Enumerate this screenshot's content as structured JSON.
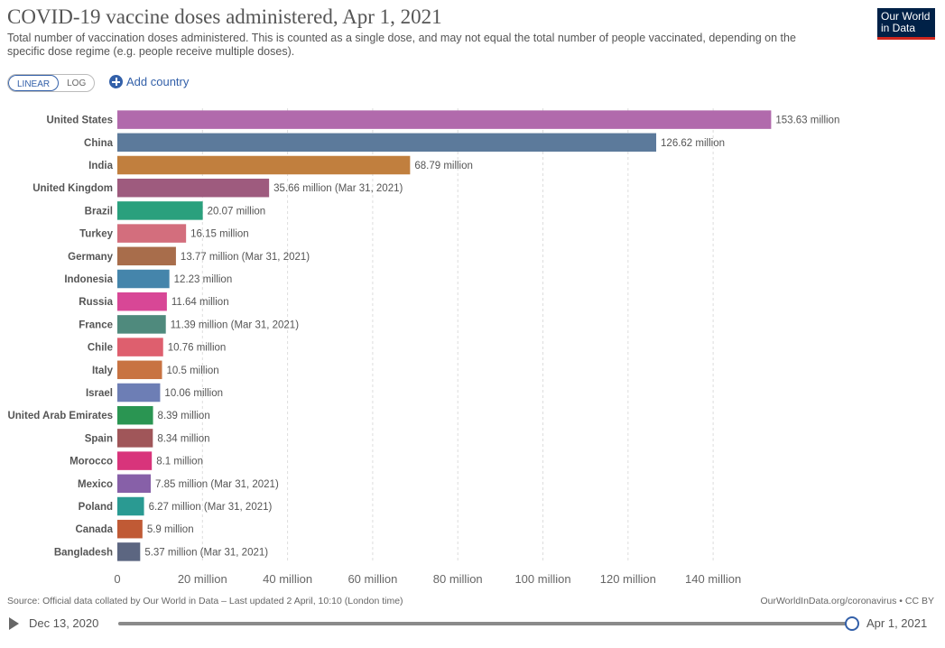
{
  "header": {
    "title": "COVID-19 vaccine doses administered, Apr 1, 2021",
    "subtitle": "Total number of vaccination doses administered. This is counted as a single dose, and may not equal the total number of people vaccinated, depending on the specific dose regime (e.g. people receive multiple doses).",
    "logo_line1": "Our World",
    "logo_line2": "in Data"
  },
  "controls": {
    "scale_linear": "LINEAR",
    "scale_log": "LOG",
    "scale_selected": "LINEAR",
    "add_country": "Add country"
  },
  "chart_data": {
    "type": "bar",
    "orientation": "horizontal",
    "categories": [
      "United States",
      "China",
      "India",
      "United Kingdom",
      "Brazil",
      "Turkey",
      "Germany",
      "Indonesia",
      "Russia",
      "France",
      "Chile",
      "Italy",
      "Israel",
      "United Arab Emirates",
      "Spain",
      "Morocco",
      "Mexico",
      "Poland",
      "Canada",
      "Bangladesh"
    ],
    "values": [
      153.63,
      126.62,
      68.79,
      35.66,
      20.07,
      16.15,
      13.77,
      12.23,
      11.64,
      11.39,
      10.76,
      10.5,
      10.06,
      8.39,
      8.34,
      8.1,
      7.85,
      6.27,
      5.9,
      5.37
    ],
    "value_labels": [
      "153.63 million",
      "126.62 million",
      "68.79 million",
      "35.66 million (Mar 31, 2021)",
      "20.07 million",
      "16.15 million",
      "13.77 million (Mar 31, 2021)",
      "12.23 million",
      "11.64 million",
      "11.39 million (Mar 31, 2021)",
      "10.76 million",
      "10.5 million",
      "10.06 million",
      "8.39 million",
      "8.34 million",
      "8.1 million",
      "7.85 million (Mar 31, 2021)",
      "6.27 million (Mar 31, 2021)",
      "5.9 million",
      "5.37 million (Mar 31, 2021)"
    ],
    "colors": [
      "#b16aac",
      "#5c7a9b",
      "#c17f3e",
      "#9e5b7e",
      "#2aa07d",
      "#d36e7d",
      "#a86d4b",
      "#4585ab",
      "#d84796",
      "#4f8a7d",
      "#de5f6e",
      "#c87342",
      "#6d7eb5",
      "#2a9552",
      "#a05659",
      "#d8347b",
      "#8760a8",
      "#2a9a92",
      "#c05a35",
      "#5c6681"
    ],
    "x_ticks": [
      "0",
      "20 million",
      "40 million",
      "60 million",
      "80 million",
      "100 million",
      "120 million",
      "140 million"
    ],
    "tick_values": [
      0,
      20,
      40,
      60,
      80,
      100,
      120,
      140
    ],
    "xlim": [
      0,
      158
    ],
    "unit": "million",
    "scale": "linear",
    "grid": true
  },
  "footer": {
    "source": "Source: Official data collated by Our World in Data – Last updated 2 April, 10:10 (London time)",
    "credit": "OurWorldInData.org/coronavirus • CC BY"
  },
  "timeline": {
    "start_label": "Dec 13, 2020",
    "end_label": "Apr 1, 2021",
    "position": 1.0
  }
}
